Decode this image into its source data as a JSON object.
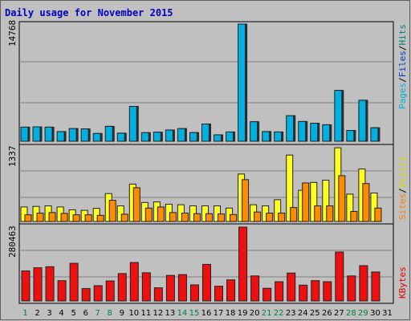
{
  "chart_data": [
    {
      "type": "bar",
      "title": "Daily usage for November 2015",
      "categories": [
        "1",
        "2",
        "3",
        "4",
        "5",
        "6",
        "7",
        "8",
        "9",
        "10",
        "11",
        "12",
        "13",
        "14",
        "15",
        "16",
        "17",
        "18",
        "19",
        "20",
        "21",
        "22",
        "23",
        "24",
        "25",
        "26",
        "27",
        "28",
        "29",
        "30",
        "31"
      ],
      "weekend_categories": [
        "1",
        "7",
        "8",
        "14",
        "15",
        "21",
        "22",
        "28",
        "29"
      ],
      "ytick_label": "14768",
      "ylim": [
        0,
        14768
      ],
      "axis_label_parts": [
        "Pages",
        "/",
        "Files",
        "/",
        "Hits"
      ],
      "series": [
        {
          "name": "Pages",
          "color": "#00a0c8",
          "values": [
            0,
            0,
            0,
            0,
            0,
            0,
            0,
            0,
            0,
            0,
            0,
            0,
            0,
            0,
            0,
            0,
            0,
            0,
            0,
            0,
            0,
            0,
            0,
            0,
            0,
            0,
            0,
            0,
            0,
            0,
            0
          ]
        },
        {
          "name": "Files",
          "color": "#00c0e0",
          "values": [
            1780,
            1820,
            1780,
            1220,
            1600,
            1560,
            980,
            1880,
            1020,
            4400,
            1080,
            1140,
            1420,
            1600,
            1090,
            2170,
            810,
            1170,
            14768,
            2460,
            1220,
            1170,
            3220,
            2490,
            2270,
            2080,
            6410,
            1360,
            5170,
            1700,
            0
          ]
        },
        {
          "name": "Hits",
          "color": "#00e8f8",
          "values": [
            1780,
            1820,
            1780,
            1220,
            1600,
            1560,
            980,
            1880,
            1020,
            4400,
            1080,
            1140,
            1420,
            1600,
            1090,
            2170,
            810,
            1170,
            14768,
            2460,
            1220,
            1170,
            3220,
            2490,
            2270,
            2080,
            6410,
            1360,
            5170,
            1700,
            0
          ]
        }
      ]
    },
    {
      "type": "bar",
      "ytick_label": "1337",
      "ylim": [
        0,
        1337
      ],
      "axis_label_parts": [
        "Sites",
        "/",
        "Visits"
      ],
      "series": [
        {
          "name": "Visits",
          "color": "#ffff00",
          "values": [
            260,
            270,
            280,
            260,
            210,
            200,
            235,
            500,
            280,
            670,
            340,
            350,
            310,
            300,
            280,
            280,
            280,
            240,
            850,
            300,
            280,
            390,
            1190,
            560,
            700,
            740,
            1320,
            490,
            940,
            510,
            0
          ]
        },
        {
          "name": "Sites",
          "color": "#ff8000",
          "values": [
            120,
            150,
            160,
            145,
            120,
            120,
            110,
            380,
            130,
            605,
            240,
            260,
            160,
            150,
            140,
            140,
            135,
            125,
            750,
            170,
            150,
            150,
            250,
            690,
            280,
            280,
            820,
            180,
            680,
            240,
            0
          ]
        }
      ]
    },
    {
      "type": "bar",
      "ytick_label": "280463",
      "ylim": [
        0,
        280463
      ],
      "axis_label_parts": [
        "KBytes"
      ],
      "series": [
        {
          "name": "KBytes",
          "color": "#ff0000",
          "values": [
            114000,
            126000,
            130000,
            77000,
            143000,
            47000,
            58000,
            76000,
            104000,
            146000,
            107000,
            50000,
            97000,
            100000,
            61000,
            139000,
            56000,
            80000,
            280463,
            95000,
            48000,
            73000,
            106000,
            60000,
            77000,
            73000,
            186000,
            95000,
            134000,
            110000,
            0
          ]
        }
      ]
    }
  ],
  "colors": {
    "background": "#c0c0c0",
    "plot_bg": "#c0c0c0",
    "grid": "#808080",
    "title": "#0000c0",
    "weekday": "#000000",
    "weekend": "#008040"
  }
}
